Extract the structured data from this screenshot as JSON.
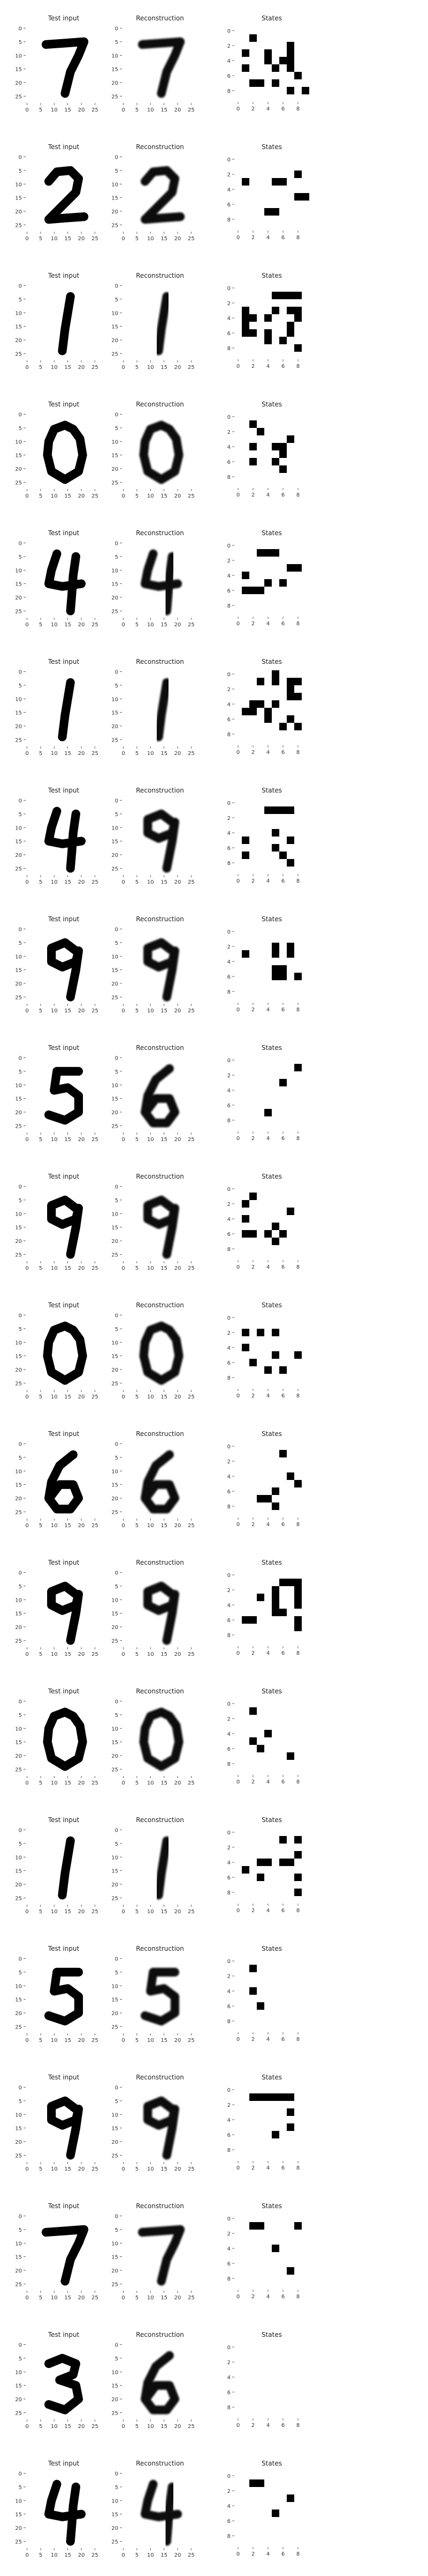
{
  "figure": {
    "panel_titles": [
      "Test input",
      "Reconstruction",
      "States"
    ]
  },
  "chart_data": {
    "type": "heatmap",
    "cmap": "gray_r",
    "image_axes": {
      "xticks": [
        0,
        5,
        10,
        15,
        20,
        25
      ],
      "yticks": [
        0,
        5,
        10,
        15,
        20,
        25
      ],
      "xlim": [
        -0.5,
        27.5
      ],
      "ylim": [
        27.5,
        -0.5
      ]
    },
    "states_axes": {
      "xticks": [
        0,
        2,
        4,
        6,
        8
      ],
      "yticks": [
        0,
        2,
        4,
        6,
        8
      ],
      "xlim": [
        -0.5,
        9.5
      ],
      "ylim": [
        9.5,
        -0.5
      ]
    },
    "digits": [
      7,
      2,
      1,
      0,
      4,
      1,
      4,
      9,
      5,
      9,
      0,
      6,
      9,
      0,
      1,
      5,
      9,
      7,
      3,
      4
    ],
    "reconstructed_as": [
      7,
      2,
      1,
      0,
      4,
      1,
      9,
      9,
      6,
      9,
      0,
      6,
      9,
      0,
      1,
      5,
      9,
      7,
      6,
      4
    ],
    "states": [
      [
        "0000000000",
        "0010000000",
        "0000000100",
        "0100100100",
        "0000101100",
        "0100010100",
        "0000000010",
        "0011010000",
        "0000000101",
        "0000000000"
      ],
      [
        "0000000000",
        "0000000000",
        "0000000010",
        "0100011000",
        "0000000000",
        "0000000011",
        "0000000000",
        "0000110000",
        "0000000000",
        "0000000000"
      ],
      [
        "0000000000",
        "0000011110",
        "0000000000",
        "0100010110",
        "0110100010",
        "0100000100",
        "0110100100",
        "0000101000",
        "0000000010",
        "0000000000"
      ],
      [
        "0000000000",
        "0010000000",
        "0001000000",
        "0000000100",
        "0010011000",
        "0000001000",
        "0010010000",
        "0000001000",
        "0000000000",
        "0000000000"
      ],
      [
        "0000000000",
        "0001110000",
        "0000000000",
        "0000000110",
        "0100000000",
        "0000101000",
        "0111000000",
        "0000000000",
        "0000000000",
        "0000000000"
      ],
      [
        "0000010000",
        "0001010110",
        "0000000100",
        "0000000110",
        "0011010000",
        "0110100000",
        "0000100100",
        "0000001010",
        "0000000000",
        "0000000000"
      ],
      [
        "0000000000",
        "0000111100",
        "0000000000",
        "0000000000",
        "0000010000",
        "0100000100",
        "0000010000",
        "0100001000",
        "0000000100",
        "0000000000"
      ],
      [
        "0000000000",
        "0000000000",
        "0000010100",
        "0100010100",
        "0000000000",
        "0000011000",
        "0000011010",
        "0000000000",
        "0000000000",
        "0000000000"
      ],
      [
        "0000000000",
        "0000000010",
        "0000000000",
        "0000001000",
        "0000000000",
        "0000000000",
        "0000000000",
        "0000100000",
        "0000000000",
        "0000000000"
      ],
      [
        "0000000000",
        "0010000000",
        "0100000000",
        "0000000100",
        "0100000000",
        "0000010000",
        "0110101000",
        "0000010000",
        "0000000000",
        "0000000000"
      ],
      [
        "0000000000",
        "0000000000",
        "0101010000",
        "0000000000",
        "0100000000",
        "0000010010",
        "0010000000",
        "0000101000",
        "0000000000",
        "0000000000"
      ],
      [
        "0000000000",
        "0000001000",
        "0000000000",
        "0000000000",
        "0000000100",
        "0000000010",
        "0000010000",
        "0001100000",
        "0000010000",
        "0000000000"
      ],
      [
        "0000000000",
        "0000001110",
        "0000010010",
        "0001010010",
        "0000010010",
        "0000011000",
        "0110000010",
        "0000000010",
        "0000000000",
        "0000000000"
      ],
      [
        "0000000000",
        "0010000000",
        "0000000000",
        "0000000000",
        "0000100000",
        "0010000000",
        "0001000000",
        "0000000100",
        "0000000000",
        "0000000000"
      ],
      [
        "0000000000",
        "0000001010",
        "0000000000",
        "0000000010",
        "0001101100",
        "0100000000",
        "0001000010",
        "0000000000",
        "0000000010",
        "0000000000"
      ],
      [
        "0000000000",
        "0010000000",
        "0000000000",
        "0000000000",
        "0010000000",
        "0000000000",
        "0001000000",
        "0000000000",
        "0000000000",
        "0000000000"
      ],
      [
        "0000000000",
        "0011111100",
        "0000000000",
        "0000000100",
        "0000000000",
        "0000000100",
        "0000010000",
        "0000000000",
        "0000000000",
        "0000000000"
      ],
      [
        "0000000000",
        "0011000010",
        "0000000000",
        "0000000000",
        "0000010000",
        "0000000000",
        "0000000000",
        "0000000100",
        "0000000000",
        "0000000000"
      ],
      [
        "0000000000",
        "0000000000",
        "0000000000",
        "0000000000",
        "0000000000",
        "0000000000",
        "0000000000",
        "0000000000",
        "0000000000",
        "0000000000"
      ],
      [
        "0000000000",
        "0011000000",
        "0000000000",
        "0000000100",
        "0000000000",
        "0000010000",
        "0000000000",
        "0000000000",
        "0000000000",
        "0000000000"
      ]
    ]
  }
}
